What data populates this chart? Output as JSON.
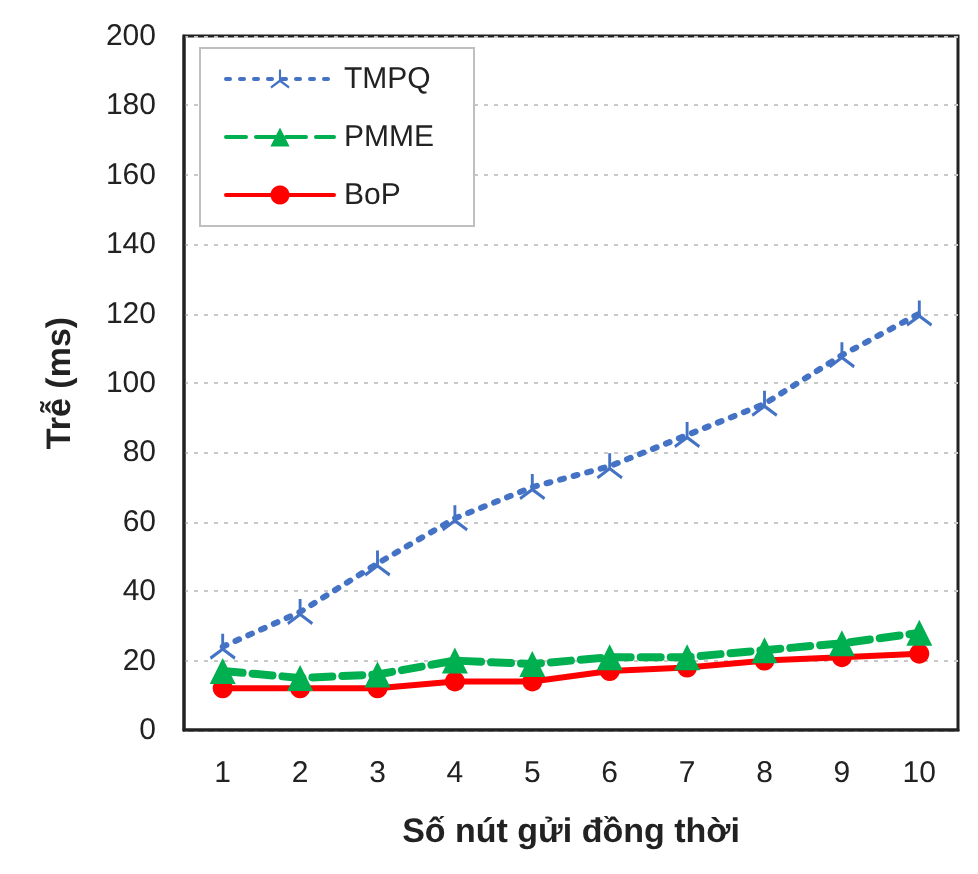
{
  "chart_data": {
    "type": "line",
    "xlabel": "Số nút gửi đồng thời",
    "ylabel": "Trễ (ms)",
    "categories": [
      "1",
      "2",
      "3",
      "4",
      "5",
      "6",
      "7",
      "8",
      "9",
      "10"
    ],
    "series": [
      {
        "name": "TMPQ",
        "color": "#4472c4",
        "marker": "star",
        "line_style": "dotted",
        "values": [
          24,
          34,
          48,
          61,
          70,
          76,
          85,
          94,
          108,
          120
        ]
      },
      {
        "name": "PMME",
        "color": "#00b050",
        "marker": "triangle",
        "line_style": "dashed",
        "values": [
          17,
          15,
          16,
          20,
          19,
          21,
          21,
          23,
          25,
          28
        ]
      },
      {
        "name": "BoP",
        "color": "#ff0000",
        "marker": "circle",
        "line_style": "solid",
        "values": [
          12,
          12,
          12,
          14,
          14,
          17,
          18,
          20,
          21,
          22
        ]
      }
    ],
    "ylim": [
      0,
      200
    ],
    "yticks": [
      0,
      20,
      40,
      60,
      80,
      100,
      120,
      140,
      160,
      180,
      200
    ],
    "grid": "y",
    "legend": "top left"
  }
}
